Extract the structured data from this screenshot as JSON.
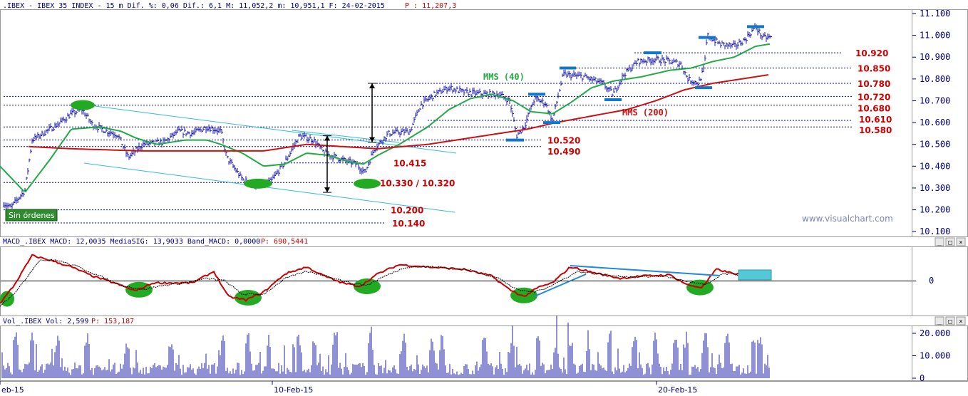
{
  "header": {
    "title_prefix": ".IBEX - IBEX 35 INDEX - 15 m Dif. %: 0,06 Dif.: 6,1 M: 11,052,2 m: 10,951,1 F: 24-02-2015",
    "price_label": "P : 11,207,3"
  },
  "macd_header": {
    "text": "MACD_.IBEX MACD: 12,0035 MediaSIG: 13,9033 Band_MACD: 0,0000",
    "price_label": "P: 690,5441"
  },
  "vol_header": {
    "text": "Vol_.IBEX Vol: 2,599",
    "price_label": "P: 153,187"
  },
  "watermark": "www.visualchart.com",
  "sin_ordenes": "Sin órdenes",
  "annotations": {
    "mms40": "MMS (40)",
    "mms200": "MMS (200)",
    "double_bottom": "10.330 / 10.320"
  },
  "colors": {
    "price_bars": "#1a1aa0",
    "mms40": "#22aa44",
    "mms200": "#cc1111",
    "channel": "#33bbdd",
    "level_line": "#0000aa",
    "ellipse": "#22aa22",
    "resistance_mark": "#1177cc",
    "macd_line": "#cc0000",
    "signal_line": "#000000",
    "trendline": "#2288dd",
    "volume_bars": "#2222aa",
    "axis_text": "#000080",
    "header_red": "#cc0000"
  },
  "chart_data": [
    {
      "type": "candlestick",
      "title": ".IBEX - IBEX 35 INDEX - 15 m",
      "y_ticks": [
        "11.100",
        "11.000",
        "10.900",
        "10.800",
        "10.700",
        "10.600",
        "10.500",
        "10.400",
        "10.300",
        "10.200",
        "10.100"
      ],
      "ylim": [
        10090,
        11110
      ],
      "x_ticks": [
        "eb-15",
        "10-Feb-15",
        "20-Feb-15"
      ],
      "levels": [
        {
          "value": 10920,
          "label": "10.920"
        },
        {
          "value": 10850,
          "label": "10.850"
        },
        {
          "value": 10780,
          "label": "10.780"
        },
        {
          "value": 10720,
          "label": "10.720"
        },
        {
          "value": 10680,
          "label": "10.680"
        },
        {
          "value": 10610,
          "label": "10.610"
        },
        {
          "value": 10580,
          "label": "10.580"
        },
        {
          "value": 10520,
          "label": "10.520"
        },
        {
          "value": 10490,
          "label": "10.490"
        },
        {
          "value": 10415,
          "label": "10.415"
        },
        {
          "value": 10325,
          "label": "10.330 / 10.320"
        },
        {
          "value": 10200,
          "label": "10.200"
        },
        {
          "value": 10140,
          "label": "10.140"
        }
      ],
      "price_keypoints": [
        [
          0,
          10240
        ],
        [
          15,
          10210
        ],
        [
          35,
          10290
        ],
        [
          45,
          10520
        ],
        [
          80,
          10590
        ],
        [
          100,
          10640
        ],
        [
          115,
          10660
        ],
        [
          130,
          10590
        ],
        [
          150,
          10560
        ],
        [
          165,
          10545
        ],
        [
          180,
          10440
        ],
        [
          200,
          10500
        ],
        [
          230,
          10510
        ],
        [
          250,
          10560
        ],
        [
          270,
          10550
        ],
        [
          290,
          10580
        ],
        [
          310,
          10560
        ],
        [
          318,
          10440
        ],
        [
          340,
          10340
        ],
        [
          360,
          10310
        ],
        [
          380,
          10330
        ],
        [
          400,
          10420
        ],
        [
          420,
          10540
        ],
        [
          440,
          10520
        ],
        [
          455,
          10460
        ],
        [
          480,
          10430
        ],
        [
          500,
          10410
        ],
        [
          512,
          10370
        ],
        [
          525,
          10480
        ],
        [
          545,
          10550
        ],
        [
          575,
          10560
        ],
        [
          590,
          10680
        ],
        [
          610,
          10730
        ],
        [
          630,
          10760
        ],
        [
          650,
          10740
        ],
        [
          680,
          10730
        ],
        [
          700,
          10730
        ],
        [
          715,
          10700
        ],
        [
          725,
          10540
        ],
        [
          735,
          10580
        ],
        [
          750,
          10710
        ],
        [
          765,
          10690
        ],
        [
          775,
          10610
        ],
        [
          790,
          10820
        ],
        [
          820,
          10810
        ],
        [
          845,
          10780
        ],
        [
          860,
          10730
        ],
        [
          875,
          10820
        ],
        [
          895,
          10880
        ],
        [
          920,
          10890
        ],
        [
          940,
          10880
        ],
        [
          955,
          10870
        ],
        [
          965,
          10800
        ],
        [
          980,
          10780
        ],
        [
          988,
          10850
        ],
        [
          992,
          11000
        ],
        [
          1010,
          10960
        ],
        [
          1030,
          10950
        ],
        [
          1045,
          10980
        ],
        [
          1060,
          11040
        ],
        [
          1070,
          10990
        ],
        [
          1080,
          10990
        ]
      ],
      "series": [
        {
          "name": "MMS (40)",
          "keypoints": [
            [
              0,
              10400
            ],
            [
              35,
              10280
            ],
            [
              70,
              10430
            ],
            [
              100,
              10570
            ],
            [
              140,
              10580
            ],
            [
              170,
              10560
            ],
            [
              190,
              10530
            ],
            [
              220,
              10500
            ],
            [
              260,
              10520
            ],
            [
              290,
              10520
            ],
            [
              310,
              10500
            ],
            [
              340,
              10460
            ],
            [
              370,
              10400
            ],
            [
              400,
              10410
            ],
            [
              430,
              10460
            ],
            [
              460,
              10450
            ],
            [
              490,
              10420
            ],
            [
              510,
              10410
            ],
            [
              530,
              10450
            ],
            [
              560,
              10500
            ],
            [
              600,
              10580
            ],
            [
              630,
              10660
            ],
            [
              660,
              10710
            ],
            [
              690,
              10730
            ],
            [
              720,
              10700
            ],
            [
              745,
              10650
            ],
            [
              775,
              10640
            ],
            [
              800,
              10690
            ],
            [
              830,
              10760
            ],
            [
              860,
              10790
            ],
            [
              900,
              10810
            ],
            [
              940,
              10840
            ],
            [
              970,
              10850
            ],
            [
              1000,
              10880
            ],
            [
              1030,
              10900
            ],
            [
              1060,
              10950
            ],
            [
              1080,
              10960
            ]
          ]
        },
        {
          "name": "MMS (200)",
          "keypoints": [
            [
              40,
              10490
            ],
            [
              100,
              10480
            ],
            [
              200,
              10470
            ],
            [
              300,
              10470
            ],
            [
              370,
              10470
            ],
            [
              430,
              10500
            ],
            [
              480,
              10490
            ],
            [
              530,
              10480
            ],
            [
              600,
              10500
            ],
            [
              680,
              10540
            ],
            [
              740,
              10570
            ],
            [
              780,
              10600
            ],
            [
              830,
              10630
            ],
            [
              880,
              10660
            ],
            [
              920,
              10700
            ],
            [
              960,
              10750
            ],
            [
              1000,
              10780
            ],
            [
              1040,
              10800
            ],
            [
              1080,
              10820
            ]
          ]
        }
      ]
    },
    {
      "type": "line",
      "title": "MACD_.IBEX",
      "y_ticks": [
        "0"
      ],
      "ylim": [
        -150,
        150
      ],
      "series": [
        {
          "name": "MACD",
          "keypoints": [
            [
              0,
              -100
            ],
            [
              20,
              -20
            ],
            [
              45,
              110
            ],
            [
              70,
              90
            ],
            [
              100,
              60
            ],
            [
              130,
              20
            ],
            [
              160,
              -10
            ],
            [
              190,
              -45
            ],
            [
              215,
              -10
            ],
            [
              240,
              -10
            ],
            [
              270,
              -10
            ],
            [
              300,
              40
            ],
            [
              320,
              -70
            ],
            [
              345,
              -85
            ],
            [
              370,
              -50
            ],
            [
              400,
              30
            ],
            [
              430,
              60
            ],
            [
              455,
              20
            ],
            [
              480,
              -10
            ],
            [
              505,
              -25
            ],
            [
              530,
              30
            ],
            [
              560,
              70
            ],
            [
              600,
              60
            ],
            [
              650,
              50
            ],
            [
              690,
              20
            ],
            [
              715,
              -40
            ],
            [
              735,
              -70
            ],
            [
              755,
              -30
            ],
            [
              775,
              -10
            ],
            [
              800,
              60
            ],
            [
              840,
              30
            ],
            [
              870,
              10
            ],
            [
              900,
              20
            ],
            [
              940,
              25
            ],
            [
              965,
              -20
            ],
            [
              985,
              -30
            ],
            [
              1005,
              50
            ],
            [
              1030,
              30
            ],
            [
              1060,
              25
            ],
            [
              1080,
              10
            ]
          ]
        },
        {
          "name": "MediaSIG",
          "keypoints": [
            [
              0,
              -110
            ],
            [
              25,
              -40
            ],
            [
              55,
              90
            ],
            [
              80,
              90
            ],
            [
              110,
              60
            ],
            [
              140,
              20
            ],
            [
              170,
              -20
            ],
            [
              200,
              -40
            ],
            [
              230,
              -20
            ],
            [
              260,
              -10
            ],
            [
              290,
              10
            ],
            [
              315,
              0
            ],
            [
              340,
              -60
            ],
            [
              370,
              -60
            ],
            [
              400,
              10
            ],
            [
              430,
              40
            ],
            [
              460,
              20
            ],
            [
              490,
              -10
            ],
            [
              515,
              -20
            ],
            [
              540,
              20
            ],
            [
              570,
              60
            ],
            [
              610,
              60
            ],
            [
              660,
              45
            ],
            [
              700,
              10
            ],
            [
              725,
              -40
            ],
            [
              750,
              -50
            ],
            [
              775,
              -20
            ],
            [
              810,
              40
            ],
            [
              850,
              25
            ],
            [
              890,
              15
            ],
            [
              930,
              20
            ],
            [
              960,
              0
            ],
            [
              990,
              -20
            ],
            [
              1015,
              30
            ],
            [
              1045,
              25
            ],
            [
              1080,
              15
            ]
          ]
        }
      ],
      "ellipses_at": [
        [
          10,
          -80
        ],
        [
          195,
          -40
        ],
        [
          348,
          -75
        ],
        [
          515,
          -25
        ],
        [
          735,
          -65
        ],
        [
          982,
          -30
        ]
      ]
    },
    {
      "type": "bar",
      "title": "Vol_.IBEX",
      "y_ticks": [
        "20.000",
        "10.000",
        "0"
      ],
      "ylim": [
        0,
        22000
      ]
    }
  ]
}
